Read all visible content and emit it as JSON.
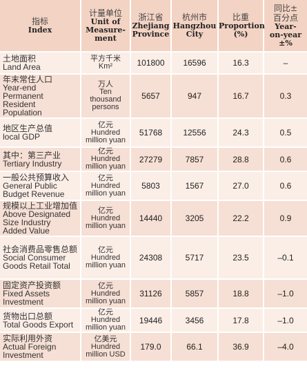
{
  "header": {
    "index_cn": "指标",
    "index_en": "Index",
    "unit_cn": "计量单位",
    "unit_en": [
      "Unit of",
      "Measure-",
      "ment"
    ],
    "zj_cn": "浙江省",
    "zj_en": [
      "Zhejiang",
      "Province"
    ],
    "hz_cn": "杭州市",
    "hz_en": [
      "Hangzhou",
      "City"
    ],
    "prop_cn": "比重",
    "prop_en": [
      "Proportion",
      "(%)"
    ],
    "yoy_cn": [
      "同比±",
      "百分点"
    ],
    "yoy_en": [
      "Year-",
      "on-year",
      "±%"
    ]
  },
  "rows": [
    {
      "cn": "土地面积",
      "en": [
        "Land Area"
      ],
      "unit": [
        "平方千米",
        "Km²"
      ],
      "zj": "101800",
      "hz": "16596",
      "prop": "16.3",
      "yoy": "–"
    },
    {
      "cn": "年末常住人口",
      "en": [
        "Year-end",
        "Permanent",
        "Resident",
        "Population"
      ],
      "unit": [
        "万人",
        "Ten",
        "thousand",
        "persons"
      ],
      "zj": "5657",
      "hz": "947",
      "prop": "16.7",
      "yoy": "0.3"
    },
    {
      "cn": "地区生产总值",
      "en": [
        "local GDP"
      ],
      "unit": [
        "亿元",
        "Hundred",
        "million yuan"
      ],
      "zj": "51768",
      "hz": "12556",
      "prop": "24.3",
      "yoy": "0.5"
    },
    {
      "cn": "其中：第三产业",
      "en": [
        "Tertiary Industry"
      ],
      "unit": [
        "亿元",
        "Hundred",
        "million yuan"
      ],
      "zj": "27279",
      "hz": "7857",
      "prop": "28.8",
      "yoy": "0.6"
    },
    {
      "cn": "一般公共预算收入",
      "en": [
        "General Public",
        "Budget Revenue"
      ],
      "unit": [
        "亿元",
        "Hundred",
        "million yuan"
      ],
      "zj": "5803",
      "hz": "1567",
      "prop": "27.0",
      "yoy": "0.6"
    },
    {
      "cn": "规模以上工业增加值",
      "en": [
        "Above Designated",
        "Size Industry",
        "Added Value"
      ],
      "unit": [
        "亿元",
        "Hundred",
        "million yuan"
      ],
      "zj": "14440",
      "hz": "3205",
      "prop": "22.2",
      "yoy": "0.9"
    },
    {
      "cn": "社会消费品零售总额",
      "en": [
        "Social Consumer",
        "Goods Retail Total"
      ],
      "unit": [
        "亿元",
        "Hundred",
        "million yuan"
      ],
      "zj": "24308",
      "hz": "5717",
      "prop": "23.5",
      "yoy": "–0.1"
    },
    {
      "cn": "固定资产投资额",
      "en": [
        "Fixed Assets",
        "Investment"
      ],
      "unit": [
        "亿元",
        "Hundred",
        "million yuan"
      ],
      "zj": "31126",
      "hz": "5857",
      "prop": "18.8",
      "yoy": "–1.0"
    },
    {
      "cn": "货物出口总额",
      "en": [
        "Total Goods Export"
      ],
      "unit": [
        "亿元",
        "Hundred",
        "million yuan"
      ],
      "zj": "19446",
      "hz": "3456",
      "prop": "17.8",
      "yoy": "–1.0"
    },
    {
      "cn": "实际利用外资",
      "en": [
        "Actual Foreign",
        "Investment"
      ],
      "unit": [
        "亿美元",
        "Hundred",
        "million USD"
      ],
      "zj": "179.0",
      "hz": "66.1",
      "prop": "36.9",
      "yoy": "–4.0"
    }
  ]
}
